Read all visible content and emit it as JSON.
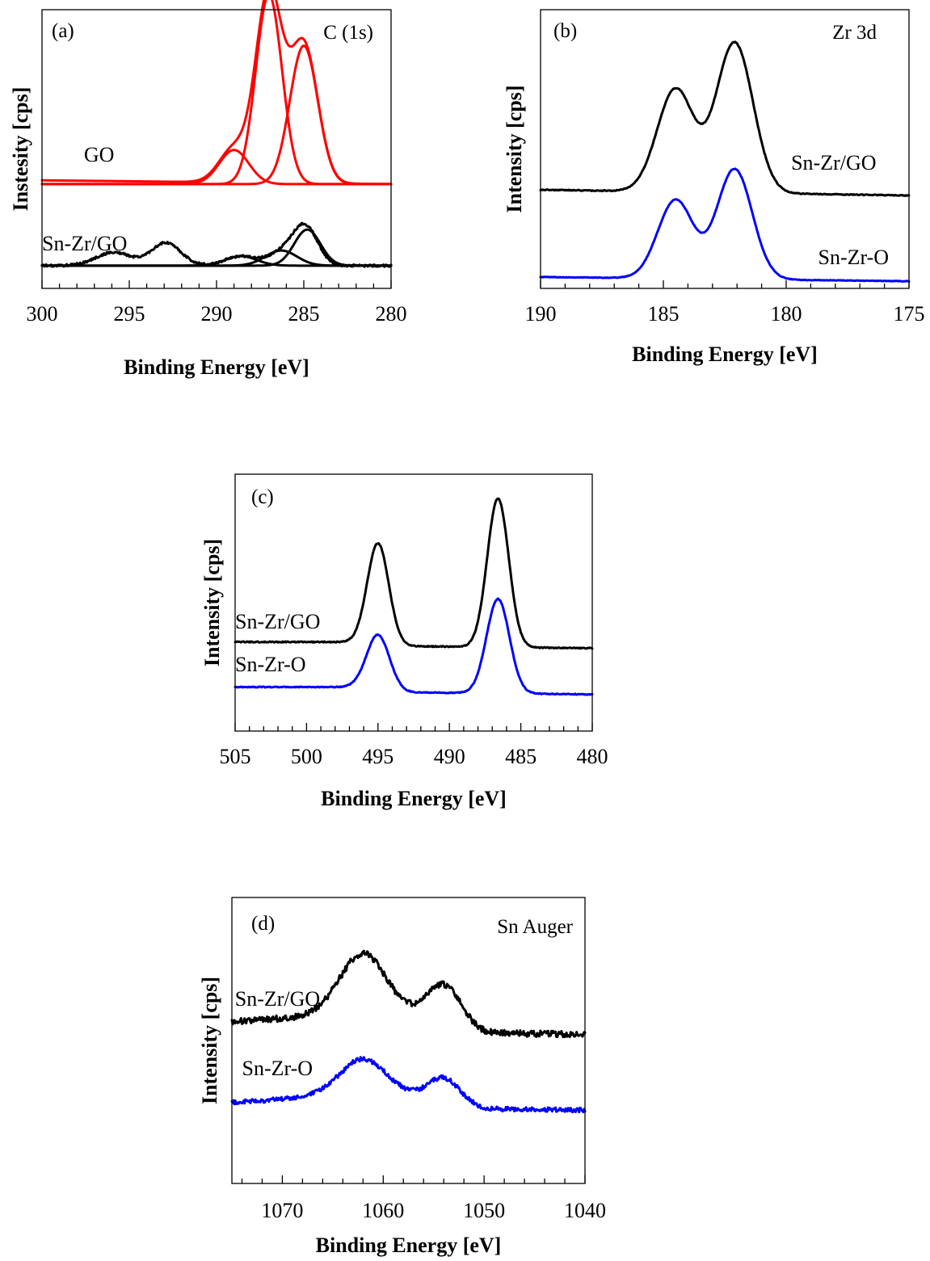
{
  "colors": {
    "go": "#ff0000",
    "sn_zr_go": "#000000",
    "sn_zr_o": "#0000ff"
  },
  "chart_data": [
    {
      "type": "line",
      "panel_label": "(a)",
      "title": "C (1s)",
      "xlabel": "Binding Energy [eV]",
      "ylabel": "Instesity [cps]",
      "xlim": [
        300,
        280
      ],
      "x_reversed": true,
      "x_ticks": [
        300,
        295,
        290,
        285,
        280
      ],
      "x_minor_step": 1,
      "y_ticks": false,
      "grid": false,
      "series": [
        {
          "name": "GO",
          "color": "#ff0000",
          "role": "envelope",
          "baseline": [
            [
              300,
              0.45
            ],
            [
              280,
              0.43
            ]
          ],
          "peaks": [
            {
              "center": 287.0,
              "height": 1.0,
              "width": 0.75
            },
            {
              "center": 285.0,
              "height": 0.73,
              "width": 0.8
            },
            {
              "center": 289.0,
              "height": 0.18,
              "width": 0.85
            }
          ]
        },
        {
          "name": "",
          "color": "#ff0000",
          "role": "component",
          "base": 0.43,
          "peaks": [
            {
              "center": 287.0,
              "height": 1.0,
              "width": 0.75
            }
          ]
        },
        {
          "name": "",
          "color": "#ff0000",
          "role": "component",
          "base": 0.43,
          "peaks": [
            {
              "center": 285.0,
              "height": 0.73,
              "width": 0.8
            }
          ]
        },
        {
          "name": "",
          "color": "#ff0000",
          "role": "component",
          "base": 0.43,
          "peaks": [
            {
              "center": 289.0,
              "height": 0.18,
              "width": 0.85
            }
          ]
        },
        {
          "name": "Sn-Zr/GO",
          "color": "#000000",
          "role": "envelope",
          "noise": 0.006,
          "baseline": [
            [
              300,
              0.0
            ],
            [
              280,
              0.0
            ]
          ],
          "peaks": [
            {
              "center": 284.9,
              "height": 0.2,
              "width": 0.7
            },
            {
              "center": 286.2,
              "height": 0.07,
              "width": 0.8
            },
            {
              "center": 288.6,
              "height": 0.05,
              "width": 0.9
            },
            {
              "center": 292.9,
              "height": 0.12,
              "width": 0.85
            },
            {
              "center": 295.9,
              "height": 0.07,
              "width": 1.0
            }
          ]
        },
        {
          "name": "",
          "color": "#000000",
          "role": "component",
          "base": 0.0,
          "peaks": [
            {
              "center": 284.8,
              "height": 0.19,
              "width": 0.75
            }
          ]
        },
        {
          "name": "",
          "color": "#000000",
          "role": "component",
          "base": 0.0,
          "peaks": [
            {
              "center": 286.3,
              "height": 0.08,
              "width": 0.9
            }
          ]
        },
        {
          "name": "",
          "color": "#000000",
          "role": "component",
          "base": 0.0,
          "peaks": [
            {
              "center": 288.6,
              "height": 0.05,
              "width": 0.9
            }
          ]
        }
      ],
      "ylim": [
        -0.12,
        1.35
      ],
      "curve_labels": [
        {
          "text": "GO",
          "x": 297.6,
          "y": 0.55
        },
        {
          "text": "Sn-Zr/GO",
          "x": 300.0,
          "y": 0.08
        }
      ]
    },
    {
      "type": "line",
      "panel_label": "(b)",
      "title": "Zr 3d",
      "xlabel": "Binding Energy [eV]",
      "ylabel": "Intensity [cps]",
      "xlim": [
        190,
        175
      ],
      "x_reversed": true,
      "x_ticks": [
        190,
        185,
        180,
        175
      ],
      "x_minor_step": 1,
      "y_ticks": false,
      "grid": false,
      "series": [
        {
          "name": "Sn-Zr/GO",
          "color": "#000000",
          "noise": 0.003,
          "baseline": [
            [
              190,
              0.64
            ],
            [
              175,
              0.6
            ]
          ],
          "peaks": [
            {
              "center": 184.5,
              "height": 0.72,
              "width": 0.75
            },
            {
              "center": 182.1,
              "height": 1.05,
              "width": 0.75
            }
          ]
        },
        {
          "name": "Sn-Zr-O",
          "color": "#0000ff",
          "noise": 0.002,
          "baseline": [
            [
              190,
              0.03
            ],
            [
              175,
              0.0
            ]
          ],
          "peaks": [
            {
              "center": 184.5,
              "height": 0.55,
              "width": 0.72
            },
            {
              "center": 182.1,
              "height": 0.77,
              "width": 0.72
            }
          ]
        }
      ],
      "ylim": [
        -0.05,
        1.9
      ],
      "curve_labels": [
        {
          "text": "Sn-Zr/GO",
          "x": 179.8,
          "y": 0.78
        },
        {
          "text": "Sn-Zr-O",
          "x": 178.7,
          "y": 0.12
        }
      ]
    },
    {
      "type": "line",
      "panel_label": "(c)",
      "title": "",
      "xlabel": "Binding Energy [eV]",
      "ylabel": "Intensity [cps]",
      "xlim": [
        505,
        480
      ],
      "x_reversed": true,
      "x_ticks": [
        505,
        500,
        495,
        490,
        485,
        480
      ],
      "x_minor_step": 1,
      "y_ticks": false,
      "grid": false,
      "series": [
        {
          "name": "Sn-Zr/GO",
          "color": "#000000",
          "noise": 0.005,
          "baseline": [
            [
              505,
              0.6
            ],
            [
              496.5,
              0.6
            ],
            [
              493,
              0.56
            ],
            [
              480,
              0.54
            ]
          ],
          "peaks": [
            {
              "center": 495.0,
              "height": 0.96,
              "width": 0.75
            },
            {
              "center": 486.6,
              "height": 1.42,
              "width": 0.75
            }
          ]
        },
        {
          "name": "Sn-Zr-O",
          "color": "#0000ff",
          "noise": 0.004,
          "baseline": [
            [
              505,
              0.17
            ],
            [
              496.5,
              0.17
            ],
            [
              493,
              0.12
            ],
            [
              480,
              0.1
            ]
          ],
          "peaks": [
            {
              "center": 495.0,
              "height": 0.52,
              "width": 0.8
            },
            {
              "center": 486.6,
              "height": 0.9,
              "width": 0.8
            }
          ]
        }
      ],
      "ylim": [
        -0.25,
        2.2
      ],
      "curve_labels": [
        {
          "text": "Sn-Zr/GO",
          "x": 505.0,
          "y": 0.73
        },
        {
          "text": "Sn-Zr-O",
          "x": 505.0,
          "y": 0.32
        }
      ]
    },
    {
      "type": "line",
      "panel_label": "(d)",
      "title": "Sn Auger",
      "xlabel": "Binding Energy [eV]",
      "ylabel": "Intensity [cps]",
      "xlim": [
        1075,
        1040
      ],
      "x_reversed": true,
      "x_ticks": [
        1070,
        1060,
        1050,
        1040
      ],
      "x_minor_step": 2,
      "y_ticks": false,
      "grid": false,
      "series": [
        {
          "name": "Sn-Zr/GO",
          "color": "#000000",
          "noise": 0.025,
          "baseline": [
            [
              1075,
              0.85
            ],
            [
              1066,
              0.9
            ],
            [
              1058,
              0.9
            ],
            [
              1050,
              0.76
            ],
            [
              1040,
              0.75
            ]
          ],
          "peaks": [
            {
              "center": 1062.0,
              "height": 0.5,
              "width": 2.3
            },
            {
              "center": 1054.0,
              "height": 0.32,
              "width": 1.7
            }
          ]
        },
        {
          "name": "Sn-Zr-O",
          "color": "#0000ff",
          "noise": 0.018,
          "baseline": [
            [
              1075,
              0.2
            ],
            [
              1066,
              0.25
            ],
            [
              1058,
              0.25
            ],
            [
              1050,
              0.15
            ],
            [
              1040,
              0.14
            ]
          ],
          "peaks": [
            {
              "center": 1062.0,
              "height": 0.3,
              "width": 2.3
            },
            {
              "center": 1054.0,
              "height": 0.2,
              "width": 1.6
            }
          ]
        }
      ],
      "ylim": [
        -0.45,
        1.85
      ],
      "curve_labels": [
        {
          "text": "Sn-Zr/GO",
          "x": 1074.7,
          "y": 0.98
        },
        {
          "text": "Sn-Zr-O",
          "x": 1074.0,
          "y": 0.42
        }
      ]
    }
  ]
}
